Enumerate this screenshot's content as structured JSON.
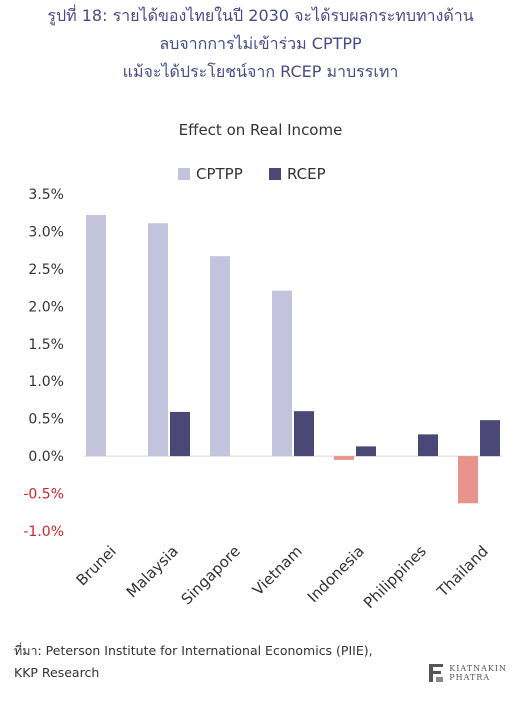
{
  "header": {
    "line1": "รูปที่ 18: รายได้ของไทยในปี 2030 จะได้รบผลกระทบทางด้าน",
    "line2": "ลบจากการไม่เข้าร่วม CPTPP",
    "line3": "แม้จะได้ประโยชน์จาก RCEP มาบรรเทา"
  },
  "chart_data": {
    "type": "bar",
    "title": "Effect on Real Income",
    "categories": [
      "Brunei",
      "Malaysia",
      "Singapore",
      "Vietnam",
      "Indonesia",
      "Philippines",
      "Thailand"
    ],
    "series": [
      {
        "name": "CPTPP",
        "values": [
          3.22,
          3.11,
          2.67,
          2.21,
          -0.05,
          0,
          -0.63
        ]
      },
      {
        "name": "RCEP",
        "values": [
          0,
          0.59,
          0,
          0.6,
          0.13,
          0.29,
          0.48
        ]
      }
    ],
    "ylim": [
      -1.0,
      3.5
    ],
    "yticks": [
      "3.5%",
      "3.0%",
      "2.5%",
      "2.0%",
      "1.5%",
      "1.0%",
      "0.5%",
      "0.0%",
      "-0.5%",
      "-1.0%"
    ],
    "grid": false,
    "legend_position": "top"
  },
  "colors": {
    "cptpp": "#c4c3de",
    "cptpp_negative": "#e8938c",
    "rcep": "#4b4777",
    "negative_tick": "#d0262a",
    "tick": "#333333",
    "title": "#4a4a8a"
  },
  "footer": {
    "source_line1": "ที่มา: Peterson Institute for International Economics (PIIE),",
    "source_line2": "KKP Research",
    "logo_line1": "KIATNAKIN",
    "logo_line2": "PHATRA"
  }
}
